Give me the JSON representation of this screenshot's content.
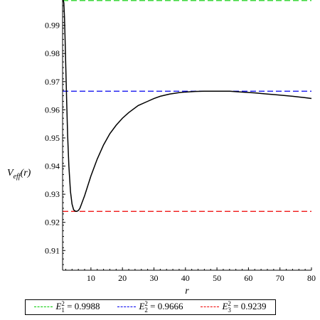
{
  "chart_data": {
    "type": "line",
    "xlabel": "r",
    "ylabel": "V_eff(r)",
    "xlim": [
      1,
      80
    ],
    "ylim": [
      0.903,
      0.999
    ],
    "x_ticks": [
      10,
      20,
      30,
      40,
      50,
      60,
      70,
      80
    ],
    "y_ticks": [
      0.91,
      0.92,
      0.93,
      0.94,
      0.95,
      0.96,
      0.97,
      0.98,
      0.99
    ],
    "grid": false,
    "legend_position": "bottom",
    "curve": {
      "color": "#000000",
      "x": [
        1.0,
        1.2,
        1.4,
        1.6,
        1.8,
        2.0,
        2.3,
        2.6,
        3.0,
        3.5,
        4.0,
        4.5,
        5.0,
        5.5,
        6.0,
        6.5,
        7.0,
        8.0,
        9.0,
        10.0,
        12.0,
        14.0,
        16.0,
        18.0,
        20.0,
        22.0,
        25.0,
        28.0,
        30.0,
        32.0,
        35.0,
        38.0,
        40.0,
        43.0,
        46.0,
        50.0,
        54.0,
        58.0,
        62.0,
        66.0,
        70.0,
        74.0,
        78.0,
        80.0
      ],
      "y": [
        0.999,
        0.9995,
        0.998,
        0.993,
        0.985,
        0.976,
        0.963,
        0.951,
        0.94,
        0.931,
        0.9265,
        0.9245,
        0.924,
        0.9239,
        0.9242,
        0.925,
        0.9265,
        0.9295,
        0.933,
        0.9365,
        0.9425,
        0.9475,
        0.9515,
        0.9545,
        0.957,
        0.959,
        0.9615,
        0.963,
        0.964,
        0.9648,
        0.9656,
        0.9661,
        0.9663,
        0.9665,
        0.9666,
        0.9666,
        0.9666,
        0.9663,
        0.966,
        0.9656,
        0.9652,
        0.9648,
        0.9643,
        0.964
      ]
    },
    "series": [
      {
        "name": "E₁² = 0.9988",
        "sup": "2",
        "sub": "1",
        "value_text": "0.9988",
        "value": 0.9988,
        "color": "#00cc00"
      },
      {
        "name": "E₂² = 0.9666",
        "sup": "2",
        "sub": "2",
        "value_text": "0.9666",
        "value": 0.9666,
        "color": "#0000ee"
      },
      {
        "name": "E₃² = 0.9239",
        "sup": "2",
        "sub": "3",
        "value_text": "0.9239",
        "value": 0.9239,
        "color": "#ee0000"
      }
    ]
  }
}
